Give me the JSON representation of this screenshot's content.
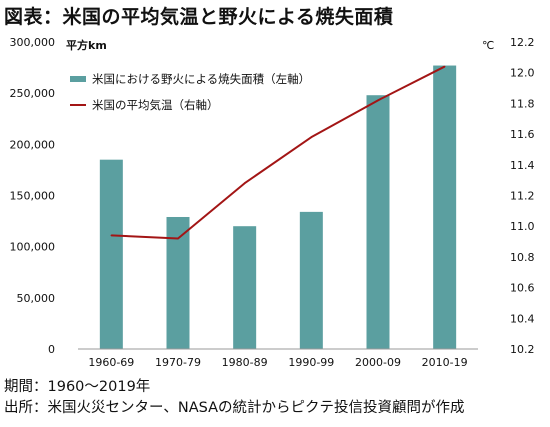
{
  "title": "図表：米国の平均気温と野火による焼失面積",
  "chart_data": {
    "type": "bar",
    "categories": [
      "1960-69",
      "1970-79",
      "1980-89",
      "1990-99",
      "2000-09",
      "2010-19"
    ],
    "y_left": {
      "unit": "平方km",
      "ylim": [
        0,
        300000
      ],
      "ticks": [
        "0",
        "50,000",
        "100,000",
        "150,000",
        "200,000",
        "250,000",
        "300,000"
      ]
    },
    "y_right": {
      "unit": "℃",
      "ylim": [
        10.2,
        12.2
      ],
      "ticks": [
        "10.2",
        "10.4",
        "10.6",
        "10.8",
        "11.0",
        "11.2",
        "11.4",
        "11.6",
        "11.8",
        "12.0",
        "12.2"
      ]
    },
    "series": [
      {
        "name": "米国における野火による焼失面積（左軸）",
        "kind": "bar",
        "axis": "left",
        "color": "#5b9fa0",
        "values": [
          185000,
          129000,
          120000,
          134000,
          248000,
          277000
        ]
      },
      {
        "name": "米国の平均気温（右軸）",
        "kind": "line",
        "axis": "right",
        "color": "#a31515",
        "values": [
          10.94,
          10.92,
          11.28,
          11.58,
          11.82,
          12.04
        ]
      }
    ],
    "legend_position": "top-left",
    "grid": false
  },
  "notes": {
    "period": "期間：1960～2019年",
    "source": "出所：米国火災センター、NASAの統計からピクテ投信投資顧問が作成"
  }
}
